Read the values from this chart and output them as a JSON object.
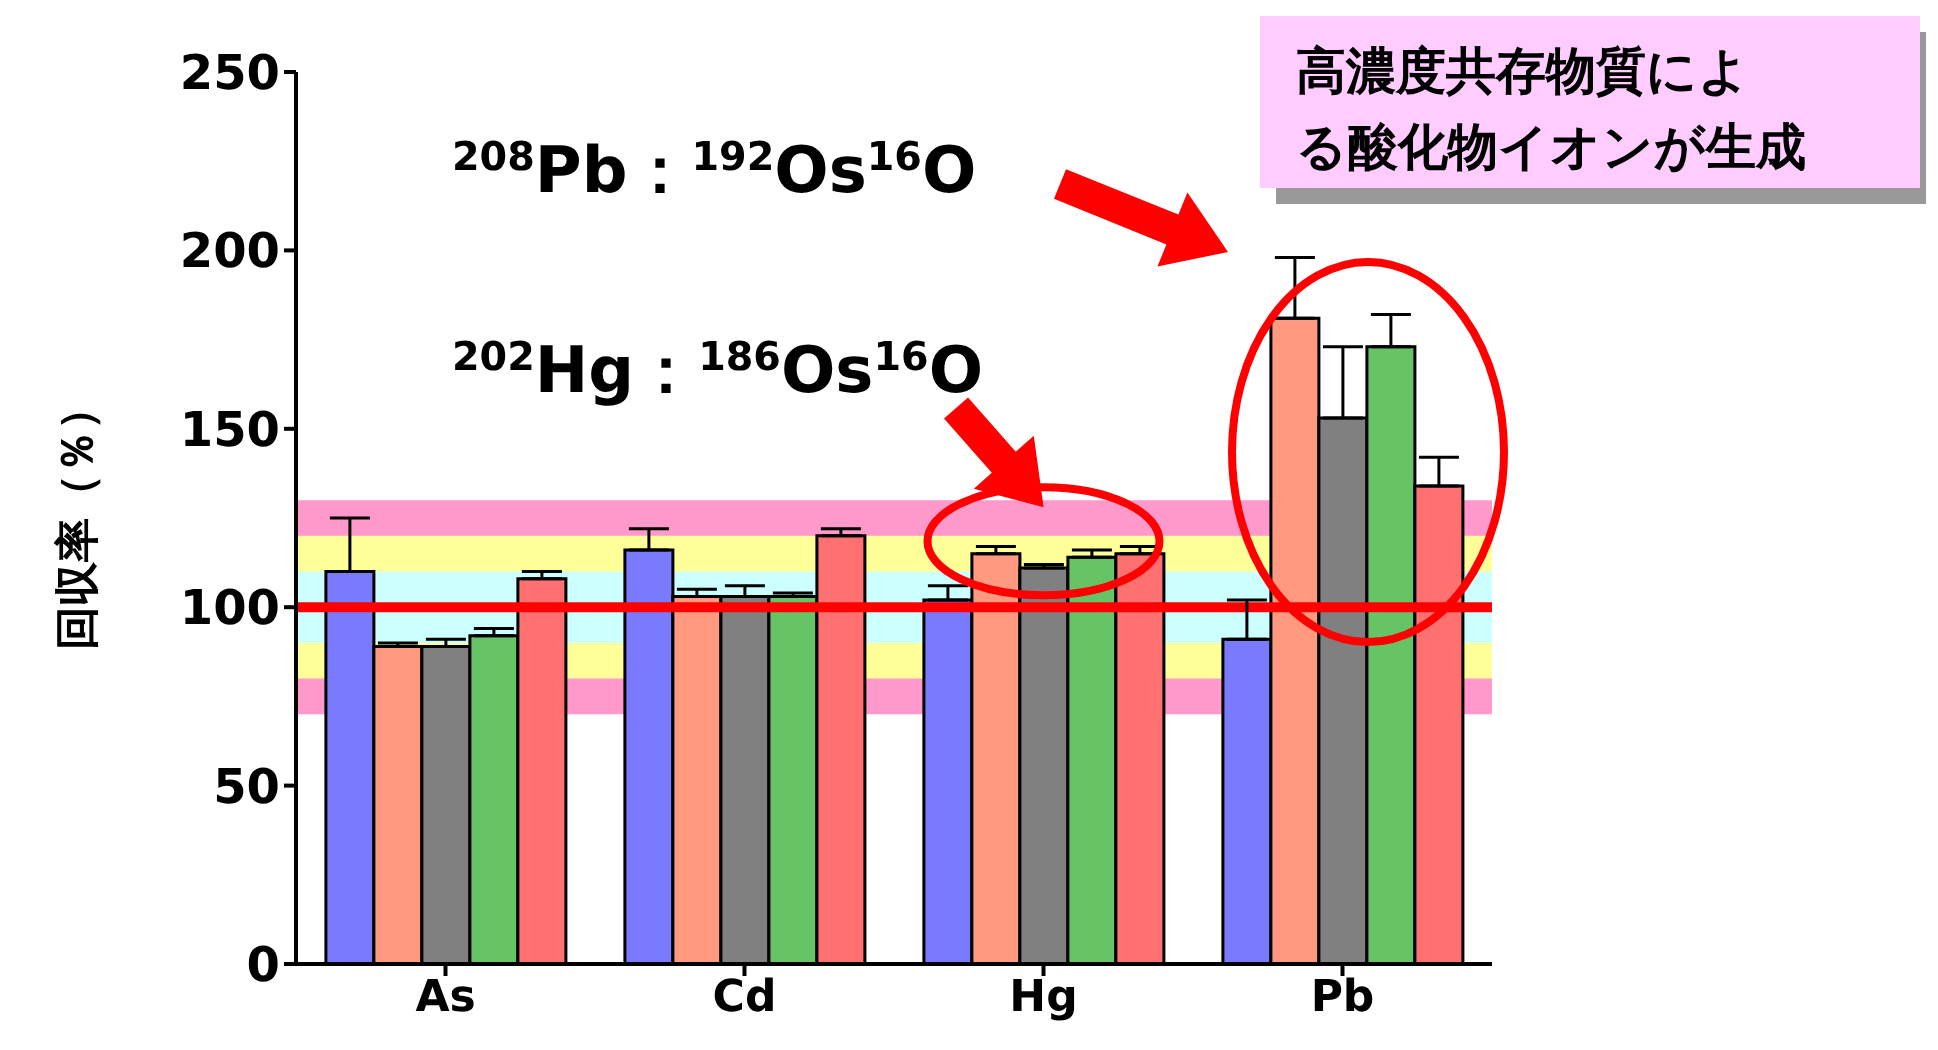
{
  "chart_data": {
    "type": "bar",
    "ylabel": "回収率（％）",
    "categories": [
      "As",
      "Cd",
      "Hg",
      "Pb"
    ],
    "series": [
      {
        "color": "#7a7aff",
        "values": [
          110,
          116,
          102,
          91
        ],
        "errors": [
          [
            110,
            125
          ],
          [
            116,
            122
          ],
          [
            102,
            106
          ],
          [
            91,
            102
          ]
        ]
      },
      {
        "color": "#ff9a80",
        "values": [
          89,
          103,
          115,
          181
        ],
        "errors": [
          [
            89,
            90
          ],
          [
            103,
            105
          ],
          [
            115,
            117
          ],
          [
            181,
            198
          ]
        ]
      },
      {
        "color": "#808080",
        "values": [
          89,
          103,
          111,
          153
        ],
        "errors": [
          [
            89,
            91
          ],
          [
            103,
            106
          ],
          [
            111,
            112
          ],
          [
            153,
            173
          ]
        ]
      },
      {
        "color": "#66c466",
        "values": [
          92,
          103,
          114,
          173
        ],
        "errors": [
          [
            92,
            94
          ],
          [
            103,
            104
          ],
          [
            114,
            116
          ],
          [
            173,
            182
          ]
        ]
      },
      {
        "color": "#ff7070",
        "values": [
          108,
          120,
          115,
          134
        ],
        "errors": [
          [
            108,
            110
          ],
          [
            120,
            122
          ],
          [
            115,
            117
          ],
          [
            134,
            142
          ]
        ]
      }
    ],
    "ylim": [
      0,
      250
    ],
    "yticks": [
      0,
      50,
      100,
      150,
      200,
      250
    ],
    "grid": false,
    "legend": false,
    "bands": [
      {
        "axis": "y",
        "from": 70,
        "to": 130,
        "color": "#ff99cc"
      },
      {
        "axis": "y",
        "from": 80,
        "to": 120,
        "color": "#ffff99"
      },
      {
        "axis": "y",
        "from": 90,
        "to": 110,
        "color": "#ccffff"
      }
    ],
    "ref_lines": [
      {
        "axis": "y",
        "value": 100,
        "color": "#ff0000",
        "line_style": "solid"
      }
    ],
    "annotations": [
      "$^{208}$Pb：$^{192}$Os$^{16}$O",
      {
        "text": "$^{202}$Hg：$^{186}$Os$^{16}$O",
        "x": "Hg",
        "y": 128
      },
      "高濃度共存物質による酸化物イオンが生成"
    ]
  }
}
